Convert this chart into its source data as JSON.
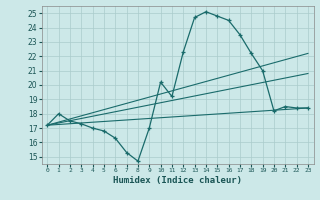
{
  "title": "",
  "xlabel": "Humidex (Indice chaleur)",
  "bg_color": "#cce8e8",
  "grid_color": "#aacccc",
  "line_color": "#1a6b6b",
  "xlim": [
    -0.5,
    23.5
  ],
  "ylim": [
    14.5,
    25.5
  ],
  "yticks": [
    15,
    16,
    17,
    18,
    19,
    20,
    21,
    22,
    23,
    24,
    25
  ],
  "xticks": [
    0,
    1,
    2,
    3,
    4,
    5,
    6,
    7,
    8,
    9,
    10,
    11,
    12,
    13,
    14,
    15,
    16,
    17,
    18,
    19,
    20,
    21,
    22,
    23
  ],
  "series": [
    {
      "x": [
        0,
        1,
        2,
        3,
        4,
        5,
        6,
        7,
        8,
        9,
        10,
        11,
        12,
        13,
        14,
        15,
        16,
        17,
        18,
        19,
        20,
        21,
        22,
        23
      ],
      "y": [
        17.2,
        18.0,
        17.5,
        17.3,
        17.0,
        16.8,
        16.3,
        15.3,
        14.7,
        17.0,
        20.2,
        19.2,
        22.3,
        24.7,
        25.1,
        24.8,
        24.5,
        23.5,
        22.2,
        21.0,
        18.2,
        18.5,
        18.4,
        18.4
      ]
    },
    {
      "x": [
        0,
        23
      ],
      "y": [
        17.2,
        22.2
      ]
    },
    {
      "x": [
        0,
        23
      ],
      "y": [
        17.2,
        20.8
      ]
    },
    {
      "x": [
        0,
        23
      ],
      "y": [
        17.2,
        18.4
      ]
    }
  ]
}
